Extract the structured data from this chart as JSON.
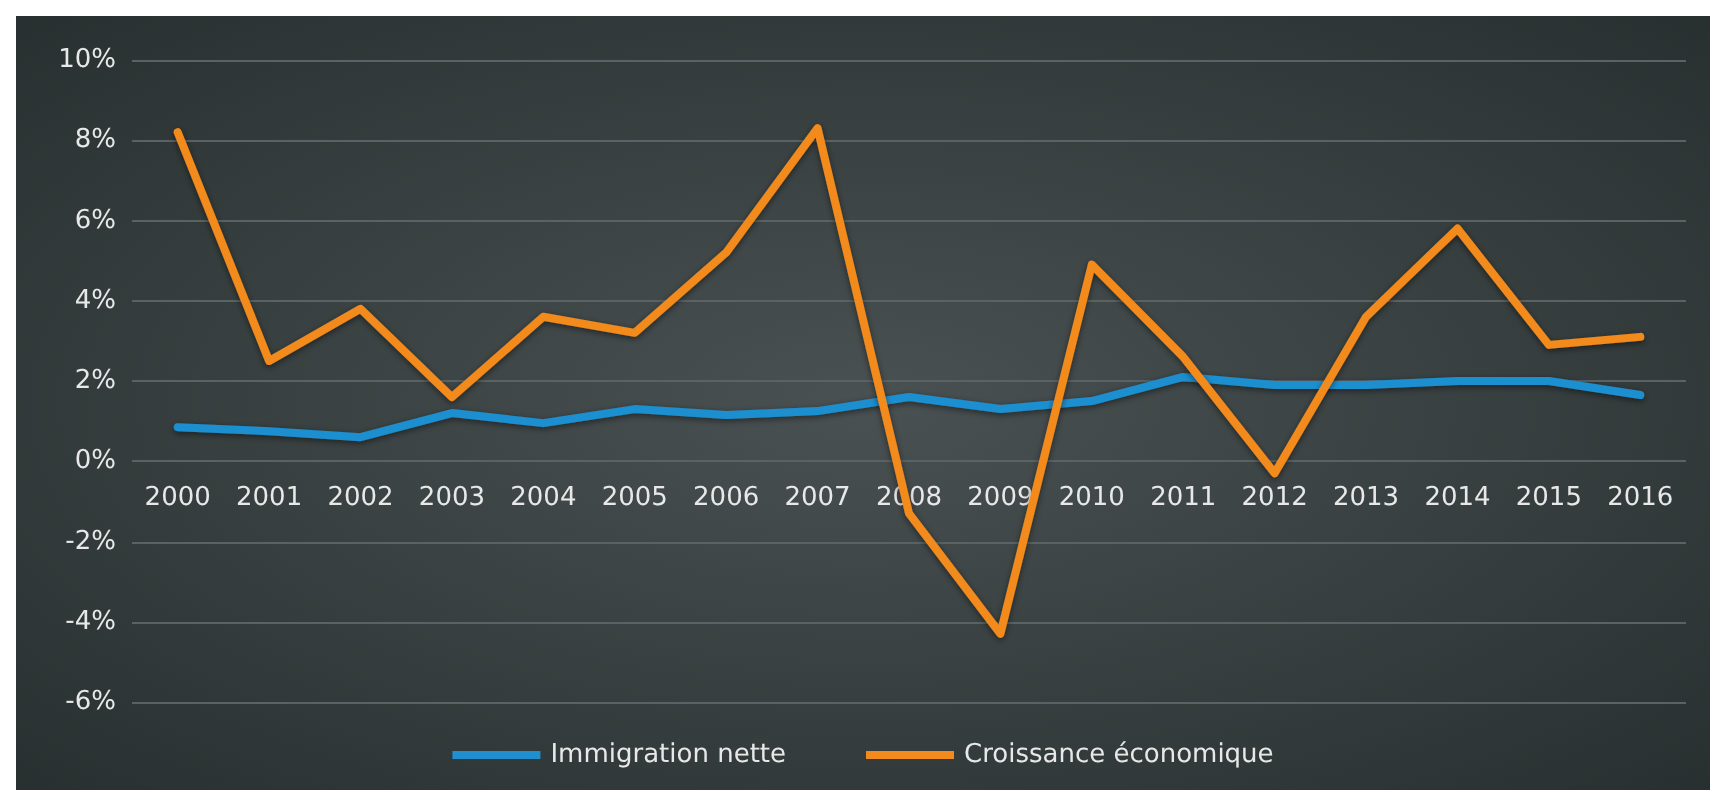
{
  "chart_data": {
    "type": "line",
    "categories": [
      "2000",
      "2001",
      "2002",
      "2003",
      "2004",
      "2005",
      "2006",
      "2007",
      "2008",
      "2009",
      "2010",
      "2011",
      "2012",
      "2013",
      "2014",
      "2015",
      "2016"
    ],
    "series": [
      {
        "name": "Immigration nette",
        "color": "#1f8fd0",
        "values": [
          0.85,
          0.75,
          0.6,
          1.2,
          0.95,
          1.3,
          1.15,
          1.25,
          1.6,
          1.3,
          1.5,
          2.1,
          1.9,
          1.9,
          2.0,
          2.0,
          1.65
        ]
      },
      {
        "name": "Croissance économique",
        "color": "#f28a1e",
        "values": [
          8.2,
          2.5,
          3.8,
          1.6,
          3.6,
          3.2,
          5.2,
          8.3,
          -1.3,
          -4.3,
          4.9,
          2.6,
          -0.3,
          3.6,
          5.8,
          2.9,
          3.1
        ]
      }
    ],
    "ylim": [
      -6,
      10
    ],
    "yticks": [
      {
        "value": -6,
        "label": "-6%"
      },
      {
        "value": -4,
        "label": "-4%"
      },
      {
        "value": -2,
        "label": "-2%"
      },
      {
        "value": 0,
        "label": "0%"
      },
      {
        "value": 2,
        "label": "2%"
      },
      {
        "value": 4,
        "label": "4%"
      },
      {
        "value": 6,
        "label": "6%"
      },
      {
        "value": 8,
        "label": "8%"
      },
      {
        "value": 10,
        "label": "10%"
      }
    ],
    "grid": "y",
    "legend": "bottom",
    "marker": "none",
    "line_style": "solid"
  }
}
